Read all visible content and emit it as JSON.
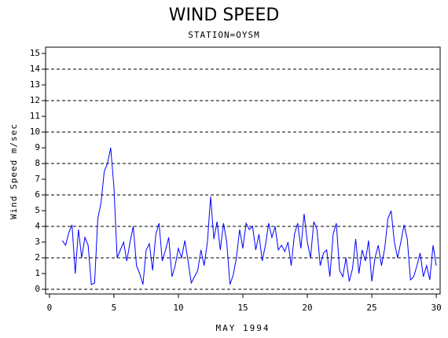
{
  "chart_data": {
    "type": "line",
    "title": "WIND SPEED",
    "subtitle": "STATION=OYSM",
    "x_label": "MAY 1994",
    "y_label": "Wind Speed m/sec",
    "x": [
      1,
      1.25,
      1.5,
      1.75,
      2,
      2.25,
      2.5,
      2.75,
      3,
      3.25,
      3.5,
      3.75,
      4,
      4.25,
      4.5,
      4.75,
      5,
      5.25,
      5.5,
      5.75,
      6,
      6.25,
      6.5,
      6.75,
      7,
      7.25,
      7.5,
      7.75,
      8,
      8.25,
      8.5,
      8.75,
      9,
      9.25,
      9.5,
      9.75,
      10,
      10.25,
      10.5,
      10.75,
      11,
      11.25,
      11.5,
      11.75,
      12,
      12.25,
      12.5,
      12.75,
      13,
      13.25,
      13.5,
      13.75,
      14,
      14.25,
      14.5,
      14.75,
      15,
      15.25,
      15.5,
      15.75,
      16,
      16.25,
      16.5,
      16.75,
      17,
      17.25,
      17.5,
      17.75,
      18,
      18.25,
      18.5,
      18.75,
      19,
      19.25,
      19.5,
      19.75,
      20,
      20.25,
      20.5,
      20.75,
      21,
      21.25,
      21.5,
      21.75,
      22,
      22.25,
      22.5,
      22.75,
      23,
      23.25,
      23.5,
      23.75,
      24,
      24.25,
      24.5,
      24.75,
      25,
      25.25,
      25.5,
      25.75,
      26,
      26.25,
      26.5,
      26.75,
      27,
      27.25,
      27.5,
      27.75,
      28,
      28.25,
      28.5,
      28.75,
      29,
      29.25,
      29.5,
      29.75,
      30
    ],
    "series": [
      {
        "name": "Wind Speed",
        "color": "#0000ff",
        "values": [
          3.1,
          2.8,
          3.6,
          4.1,
          1.0,
          3.8,
          2.0,
          3.3,
          2.8,
          0.3,
          0.4,
          4.5,
          5.5,
          7.5,
          8.0,
          9.0,
          6.5,
          2.0,
          2.5,
          3.0,
          1.8,
          3.0,
          4.0,
          1.5,
          1.0,
          0.3,
          2.5,
          2.9,
          1.2,
          3.5,
          4.2,
          1.8,
          2.5,
          3.3,
          0.8,
          1.5,
          2.6,
          2.0,
          3.1,
          1.8,
          0.4,
          0.8,
          1.2,
          2.5,
          1.5,
          3.0,
          5.9,
          3.2,
          4.3,
          2.5,
          4.2,
          3.0,
          0.3,
          0.9,
          2.0,
          3.8,
          2.6,
          4.2,
          3.8,
          4.0,
          2.5,
          3.5,
          1.8,
          2.8,
          4.2,
          3.3,
          4.0,
          2.5,
          2.8,
          2.4,
          3.0,
          1.5,
          3.5,
          4.2,
          2.6,
          4.8,
          3.0,
          2.0,
          4.3,
          3.8,
          1.5,
          2.3,
          2.5,
          0.8,
          3.5,
          4.2,
          1.2,
          0.8,
          2.0,
          0.5,
          1.3,
          3.2,
          1.0,
          2.5,
          1.8,
          3.1,
          0.5,
          2.0,
          2.8,
          1.5,
          2.6,
          4.5,
          5.0,
          3.0,
          2.0,
          3.0,
          4.1,
          3.2,
          0.6,
          0.8,
          1.5,
          2.3,
          0.8,
          1.5,
          0.6,
          2.8,
          1.5
        ]
      }
    ],
    "xlim": [
      -0.3,
      30.3
    ],
    "xticks": [
      0,
      5,
      10,
      15,
      20,
      25,
      30
    ],
    "ylim": [
      -0.3,
      15.4
    ],
    "yticks": [
      0,
      1,
      2,
      3,
      4,
      5,
      6,
      7,
      8,
      9,
      10,
      11,
      12,
      13,
      14,
      15
    ],
    "grid": true
  }
}
